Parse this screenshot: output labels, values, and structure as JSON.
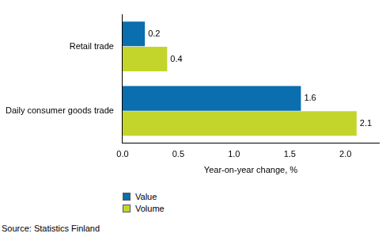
{
  "chart_data": {
    "type": "bar",
    "orientation": "horizontal",
    "categories": [
      "Retail trade",
      "Daily consumer goods trade"
    ],
    "series": [
      {
        "name": "Value",
        "color": "#0a6eaf",
        "values": [
          0.2,
          1.6
        ]
      },
      {
        "name": "Volume",
        "color": "#c3d52b",
        "values": [
          0.4,
          2.1
        ]
      }
    ],
    "x_label": "Year-on-year change, %",
    "xlim": [
      0,
      2.3
    ],
    "xticks": [
      {
        "value": 0,
        "label": "0.0"
      },
      0.5,
      {
        "value": 1,
        "label": "1.0"
      },
      1.5,
      {
        "value": 2,
        "label": "2.0"
      }
    ],
    "grid": false,
    "data_labels": true,
    "legend": "bottom",
    "source": "Source: Statistics Finland"
  }
}
